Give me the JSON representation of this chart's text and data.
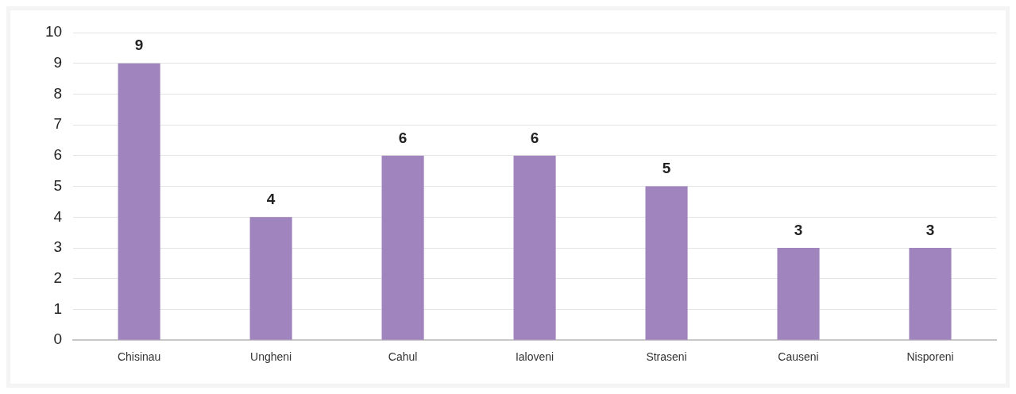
{
  "chart_data": {
    "type": "bar",
    "categories": [
      "Chisinau",
      "Ungheni",
      "Cahul",
      "Ialoveni",
      "Straseni",
      "Causeni",
      "Nisporeni"
    ],
    "values": [
      9,
      4,
      6,
      6,
      5,
      3,
      3
    ],
    "color": "#a084bd",
    "ylim": [
      0,
      10
    ],
    "yticks": [
      0,
      1,
      2,
      3,
      4,
      5,
      6,
      7,
      8,
      9,
      10
    ],
    "grid": "y",
    "data_labels": true,
    "legend": false
  }
}
